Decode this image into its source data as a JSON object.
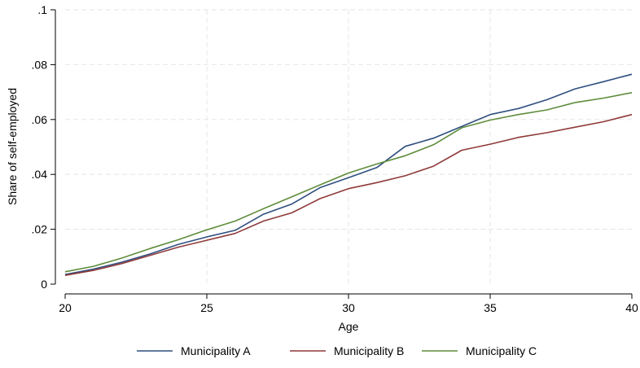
{
  "chart_data": {
    "type": "line",
    "title": "",
    "xlabel": "Age",
    "ylabel": "Share of self-employed",
    "xlim": [
      20,
      40
    ],
    "ylim": [
      0,
      0.1
    ],
    "x_ticks": [
      20,
      25,
      30,
      35,
      40
    ],
    "x_tick_labels": [
      "20",
      "25",
      "30",
      "35",
      "40"
    ],
    "y_ticks": [
      0,
      0.02,
      0.04,
      0.06,
      0.08,
      0.1
    ],
    "y_tick_labels": [
      "0",
      ".02",
      ".04",
      ".06",
      ".08",
      ".1"
    ],
    "grid": true,
    "legend_position": "bottom",
    "x": [
      20,
      21,
      22,
      23,
      24,
      25,
      26,
      27,
      28,
      29,
      30,
      31,
      32,
      33,
      34,
      35,
      36,
      37,
      38,
      39,
      40
    ],
    "series": [
      {
        "name": "Municipality A",
        "color": "#2f4f7f",
        "values": [
          0.0035,
          0.0055,
          0.008,
          0.011,
          0.0145,
          0.0172,
          0.0196,
          0.0255,
          0.0292,
          0.0352,
          0.0388,
          0.0425,
          0.0502,
          0.0532,
          0.0575,
          0.0618,
          0.064,
          0.0672,
          0.0712,
          0.0738,
          0.0765
        ]
      },
      {
        "name": "Municipality B",
        "color": "#8f3a3a",
        "values": [
          0.0032,
          0.005,
          0.0075,
          0.0105,
          0.0135,
          0.016,
          0.0185,
          0.023,
          0.026,
          0.0312,
          0.0348,
          0.037,
          0.0395,
          0.043,
          0.0488,
          0.051,
          0.0535,
          0.0552,
          0.0572,
          0.0592,
          0.0618
        ]
      },
      {
        "name": "Municipality C",
        "color": "#5e8c3a",
        "values": [
          0.0045,
          0.0065,
          0.0095,
          0.013,
          0.0162,
          0.0198,
          0.023,
          0.0275,
          0.0318,
          0.0362,
          0.0405,
          0.0438,
          0.0468,
          0.0508,
          0.057,
          0.0598,
          0.0618,
          0.0635,
          0.0662,
          0.0678,
          0.0698
        ]
      }
    ]
  }
}
